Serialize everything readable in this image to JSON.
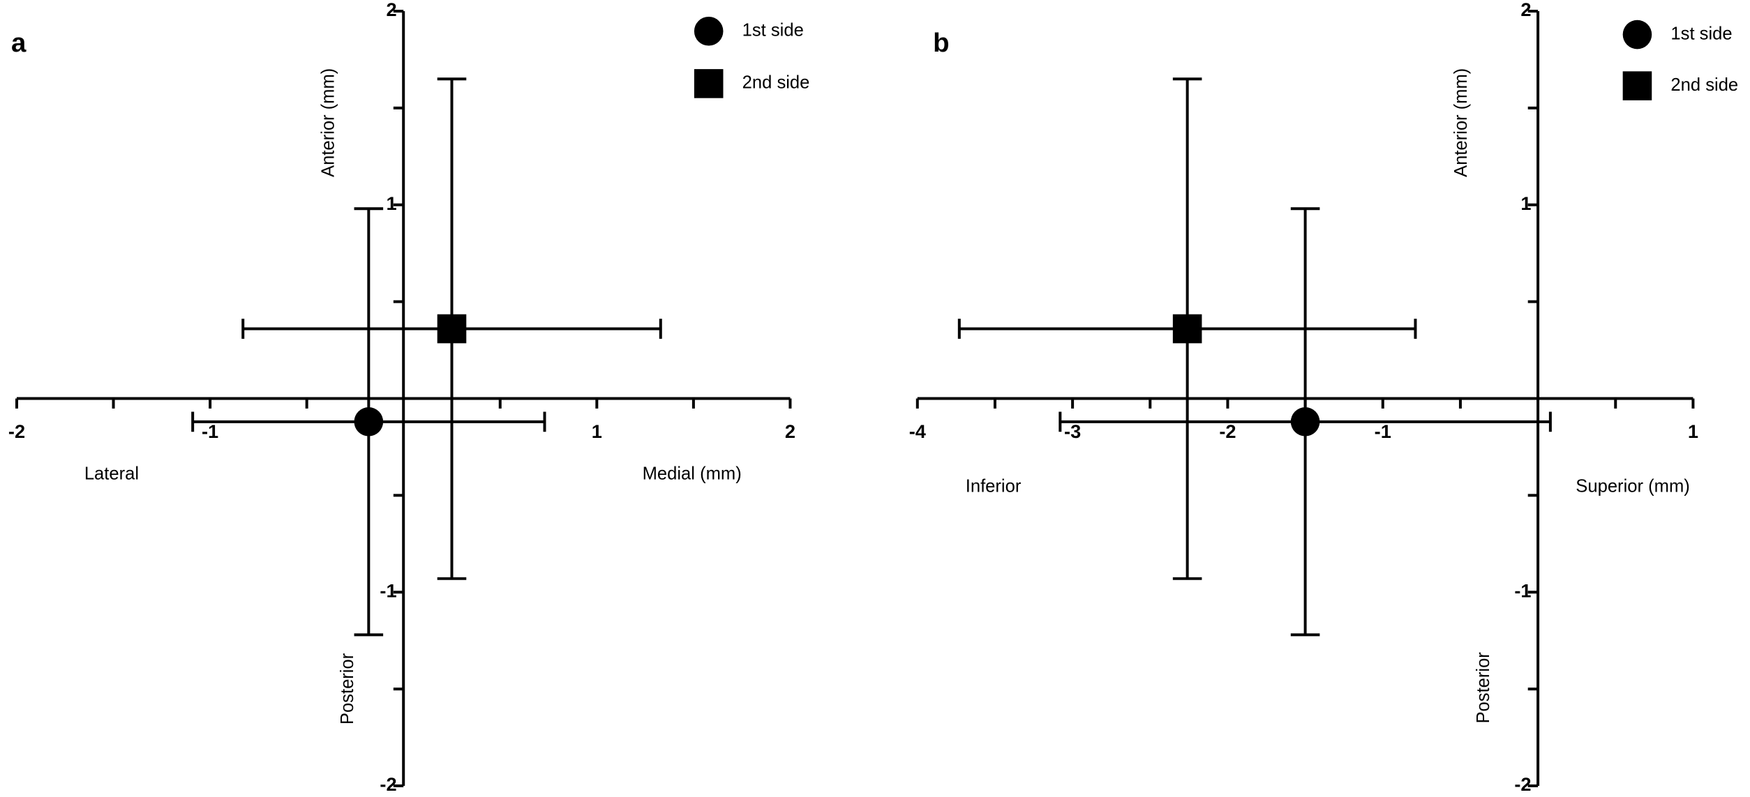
{
  "chart_data": [
    {
      "type": "scatter",
      "panel_label": "a",
      "xlabel_left": "Lateral",
      "xlabel_right": "Medial (mm)",
      "ylabel_top": "Anterior (mm)",
      "ylabel_bottom": "Posterior",
      "xlim": [
        -2,
        2
      ],
      "ylim": [
        -2,
        2
      ],
      "xticks": [
        -2,
        -1,
        1,
        2
      ],
      "yticks": [
        -2,
        -1,
        1,
        2
      ],
      "minor_xticks": [
        -1.5,
        -0.5,
        0.5,
        1.5
      ],
      "minor_yticks": [
        -1.5,
        -0.5,
        0.5,
        1.5
      ],
      "series": [
        {
          "name": "1st side",
          "marker": "circle",
          "color": "#000000",
          "x": [
            -0.18
          ],
          "y": [
            -0.12
          ],
          "xerr": [
            0.91
          ],
          "yerr": [
            1.1
          ]
        },
        {
          "name": "2nd side",
          "marker": "square",
          "color": "#000000",
          "x": [
            0.25
          ],
          "y": [
            0.36
          ],
          "xerr": [
            1.08
          ],
          "yerr": [
            1.29
          ]
        }
      ]
    },
    {
      "type": "scatter",
      "panel_label": "b",
      "xlabel_left": "Inferior",
      "xlabel_right": "Superior (mm)",
      "ylabel_top": "Anterior (mm)",
      "ylabel_bottom": "Posterior",
      "xlim": [
        -4,
        1
      ],
      "ylim": [
        -2,
        2
      ],
      "xticks": [
        -4,
        -3,
        -2,
        -1,
        1
      ],
      "yticks": [
        -2,
        -1,
        1,
        2
      ],
      "minor_xticks": [
        -3.5,
        -2.5,
        -1.5,
        -0.5,
        0.5
      ],
      "minor_yticks": [
        -1.5,
        -0.5,
        0.5,
        1.5
      ],
      "series": [
        {
          "name": "1st side",
          "marker": "circle",
          "color": "#000000",
          "x": [
            -1.5
          ],
          "y": [
            -0.12
          ],
          "xerr": [
            1.58
          ],
          "yerr": [
            1.1
          ]
        },
        {
          "name": "2nd side",
          "marker": "square",
          "color": "#000000",
          "x": [
            -2.26
          ],
          "y": [
            0.36
          ],
          "xerr": [
            1.47
          ],
          "yerr": [
            1.29
          ]
        }
      ]
    }
  ]
}
